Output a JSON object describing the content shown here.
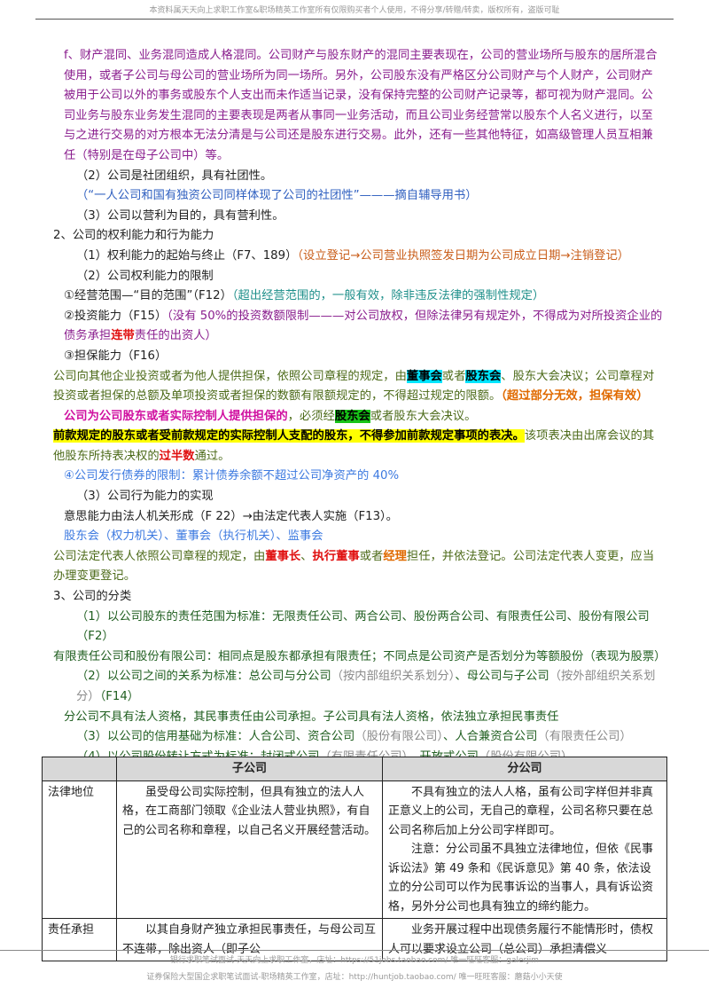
{
  "header": "本资料属天天向上求职工作室&职场精英工作室所有仅限购买者个人使用，不得分享/转赠/转卖，版权所有，盗版可耻",
  "para_f": "f、财产混同、业务混同造成人格混同。公司财产与股东财产的混同主要表现在，公司的营业场所与股东的居所混合使用，或者子公司与母公司的营业场所为同一场所。另外，公司股东没有严格区分公司财产与个人财产，公司财产被用于公司以外的事务或股东个人支出而未作适当记录，没有保持完整的公司财产记录等，都可视为财产混同。公司业务与股东业务发生混同的主要表现是两者从事同一业务活动，而且公司业务经营常以股东个人名义进行，以至与之进行交易的对方根本无法分清是与公司还是股东进行交易。此外，还有一些其他特征，如高级管理人员互相兼任（特别是在母子公司中）等。",
  "p2_a": "（2）公司是社团组织，具有社团性。",
  "p2_b": "（“一人公司和国有独资公司同样体现了公司的社团性”———摘自辅导用书）",
  "p3": "（3）公司以营利为目的，具有营利性。",
  "s2": "2、公司的权利能力和行为能力",
  "c1_a": "（1）权利能力的起始与终止（F7、189）",
  "c1_b": "（设立登记→公司营业执照签发日期为公司成立日期→注销登记）",
  "c2": "（2）公司权利能力的限制",
  "c3_a": "①经营范围—“目的范围”（F12）",
  "c3_b": "（超出经营范围的，一般有效，除非违反法律的强制性规定）",
  "c4_a": "②投资能力（F15）",
  "c4_b": "（没有 50%的投资数额限制———对公司放权，但除法律另有规定外，不得成为对所投资企业的债务承担",
  "c4_c": "连带",
  "c4_d": "责任的出资人）",
  "c5": "③担保能力（F16）",
  "g1_a": "公司向其他企业投资或者为他人提供担保，依照公司章程的规定，由",
  "g1_b": "董事会",
  "g1_c": "或者",
  "g1_d": "股东会",
  "g1_e": "、股东大会决议；公司章程对投资或者担保的总额及单项投资或者担保的数额有限额规定的，不得超过规定的限额。",
  "g1_f": "（超过部分无效，担保有效）",
  "g2_a": "公司为公司股东或者实际控制人提供担保的",
  "g2_b": "，必须经",
  "g2_c": "股东会",
  "g2_d": "或者股东大会决议。",
  "g3_a": "前款规定的股东或者受前款规定的实际控制人支配的股东，不得参加前款规定事项的表决。",
  "g3_b": "该项表决由出席会议的其他股东所持表决权的",
  "g3_c": "过半数",
  "g3_d": "通过。",
  "c6": "④公司发行债券的限制：累计债券余额不超过公司净资产的 40%",
  "c7": "（3）公司行为能力的实现",
  "c8": "意思能力由法人机关形成（F 22）→由法定代表人实施（F13）。",
  "c9": "股东会（权力机关）、董事会（执行机关）、监事会",
  "c10_a": "公司法定代表人依照公司章程的规定，由",
  "c10_b": "董事长",
  "c10_c": "、",
  "c10_d": "执行董事",
  "c10_e": "或者",
  "c10_f": "经理",
  "c10_g": "担任，并依法登记。公司法定代表人变更，应当办理变更登记。",
  "s3": "3、公司的分类",
  "k1": "（1）以公司股东的责任范围为标准：无限责任公司、两合公司、股份两合公司、有限责任公司、股份有限公司（F2）",
  "k2": "有限责任公司和股份有限公司：相同点是股东都承担有限责任；不同点是公司资产是否划分为等额股份（表现为股票）",
  "k3_a": "（2）以公司之间的关系为标准：总公司与分公司",
  "k3_b": "（按内部组织关系划分）",
  "k3_c": "、母公司与子公司",
  "k3_d": "（按外部组织关系划分）",
  "k3_e": "（F14）",
  "k4": "分公司不具有法人资格，其民事责任由公司承担。子公司具有法人资格，依法独立承担民事责任",
  "k5_a": "（3）以公司的信用基础为标准：人合公司、资合公司",
  "k5_b": "（股份有限公司）",
  "k5_c": "、人合兼资合公司",
  "k5_d": "（有限责任公司）",
  "k6_a": "（4）以公司股份转让方式为标准：封闭式公司",
  "k6_b": "（有限责任公司）",
  "k6_c": "、开放式公司",
  "k6_d": "（股份有限公司）",
  "table": {
    "col_sub": "子公司",
    "col_branch": "分公司",
    "row1_label": "法律地位",
    "row1_sub": "虽受母公司实际控制，但具有独立的法人人格，在工商部门领取《企业法人营业执照》，有自己的公司名称和章程，以自己名义开展经营活动。",
    "row1_branch_a": "不具有独立的法人人格，虽有公司字样但并非真正意义上的公司，无自己的章程，公司名称只要在总公司名称后加上分公司字样即可。",
    "row1_branch_b": "注意：分公司虽不具独立法律地位，但依《民事诉讼法》第 49 条和《民诉意见》第 40 条，依法设立的分公司可以作为民事诉讼的当事人，具有诉讼资格，另外分公司也具有独立的缔约能力。",
    "row2_label": "责任承担",
    "row2_sub": "以其自身财产独立承担民事责任，与母公司互不连带，除出资人（即子公",
    "row2_branch": "业务开展过程中出现债务履行不能情形时，债权人可以要求设立公司（总公司）承担清偿义"
  },
  "footer1": "银行求职笔试面试-天天向上求职工作室，店址：https://51jobs.taobao.com/ 唯一旺旺客服：galerjim",
  "footer2": "证券保险大型国企求职笔试面试-职场精英工作室，店址：http://huntjob.taobao.com/ 唯一旺旺客服：蘑菇小小天使"
}
